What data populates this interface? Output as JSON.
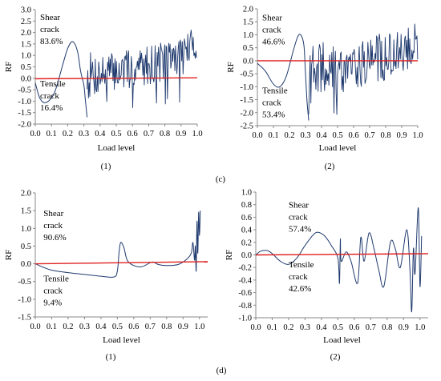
{
  "row_labels": [
    "(c)",
    "(d)"
  ],
  "chart_data": [
    {
      "id": "c1",
      "type": "line",
      "sublabel": "(1)",
      "xlabel": "Load level",
      "ylabel": "RF",
      "xlim": [
        0,
        1.0
      ],
      "ylim": [
        -2.0,
        3.0
      ],
      "xticks": [
        "0.0",
        "0.1",
        "0.2",
        "0.3",
        "0.4",
        "0.5",
        "0.6",
        "0.7",
        "0.8",
        "0.9",
        "1.0"
      ],
      "yticks": [
        "3.0",
        "2.5",
        "2.0",
        "1.5",
        "1.0",
        "0.5",
        "0.0",
        "-0.5",
        "-1.0",
        "-1.5",
        "-2.0"
      ],
      "annotations": [
        {
          "lines": [
            "Shear",
            "crack",
            "83.6%"
          ],
          "x": 0.03,
          "y": 2.55
        },
        {
          "lines": [
            "Tensile",
            "crack",
            "16.4%"
          ],
          "x": 0.03,
          "y": -0.35
        }
      ],
      "ref_line": [
        [
          0.0,
          -0.02
        ],
        [
          1.0,
          0.02
        ]
      ],
      "smooth": [
        [
          0.0,
          -0.2
        ],
        [
          0.03,
          -0.9
        ],
        [
          0.07,
          -1.05
        ],
        [
          0.12,
          -0.6
        ],
        [
          0.17,
          0.6
        ],
        [
          0.2,
          1.3
        ],
        [
          0.23,
          1.6
        ],
        [
          0.26,
          1.2
        ],
        [
          0.28,
          0.3
        ],
        [
          0.3,
          -0.3
        ],
        [
          0.31,
          -1.0
        ],
        [
          0.32,
          -1.7
        ]
      ],
      "noisy": {
        "x0": 0.32,
        "x1": 1.0,
        "step": 0.0042,
        "seed": 7,
        "profile": [
          [
            0.32,
            0.1,
            1.1
          ],
          [
            0.45,
            0.25,
            0.9
          ],
          [
            0.6,
            0.4,
            0.85
          ],
          [
            0.75,
            0.7,
            0.9
          ],
          [
            0.9,
            1.0,
            0.95
          ],
          [
            1.0,
            1.6,
            0.7
          ]
        ],
        "spike_lo": -1.3
      }
    },
    {
      "id": "c2",
      "type": "line",
      "sublabel": "(2)",
      "xlabel": "Load level",
      "ylabel": "RF",
      "xlim": [
        0,
        1.0
      ],
      "ylim": [
        -2.5,
        2.0
      ],
      "xticks": [
        "0.0",
        "0.1",
        "0.2",
        "0.3",
        "0.4",
        "0.5",
        "0.6",
        "0.7",
        "0.8",
        "0.9",
        "1.0"
      ],
      "yticks": [
        "2.0",
        "1.5",
        "1.0",
        "0.5",
        "0.0",
        "-0.5",
        "-1.0",
        "-1.5",
        "-2.0",
        "-2.5"
      ],
      "annotations": [
        {
          "lines": [
            "Shear",
            "crack",
            "46.6%"
          ],
          "x": 0.03,
          "y": 1.55
        },
        {
          "lines": [
            "Tensile",
            "crack",
            "53.4%"
          ],
          "x": 0.03,
          "y": -1.25
        }
      ],
      "ref_line": [
        [
          0.0,
          0.0
        ],
        [
          1.0,
          0.0
        ]
      ],
      "smooth": [
        [
          0.0,
          -0.1
        ],
        [
          0.05,
          -0.4
        ],
        [
          0.1,
          -0.9
        ],
        [
          0.14,
          -1.0
        ],
        [
          0.18,
          -0.6
        ],
        [
          0.22,
          0.3
        ],
        [
          0.25,
          0.9
        ],
        [
          0.27,
          1.0
        ],
        [
          0.29,
          0.6
        ],
        [
          0.3,
          -0.5
        ],
        [
          0.31,
          -1.6
        ],
        [
          0.32,
          -2.3
        ]
      ],
      "noisy": {
        "x0": 0.32,
        "x1": 1.0,
        "step": 0.0045,
        "seed": 19,
        "profile": [
          [
            0.32,
            -0.6,
            1.2
          ],
          [
            0.45,
            -0.3,
            1.1
          ],
          [
            0.6,
            -0.1,
            1.0
          ],
          [
            0.75,
            0.1,
            0.95
          ],
          [
            0.9,
            0.3,
            0.85
          ],
          [
            1.0,
            0.8,
            0.8
          ]
        ],
        "spike_lo": -2.4
      }
    },
    {
      "id": "d1",
      "type": "line",
      "sublabel": "(1)",
      "xlabel": "Load level",
      "ylabel": "RF",
      "xlim": [
        0,
        1.05
      ],
      "ylim": [
        -1.5,
        2.0
      ],
      "xticks": [
        "0.0",
        "0.1",
        "0.2",
        "0.3",
        "0.4",
        "0.5",
        "0.6",
        "0.7",
        "0.8",
        "0.9",
        "1.0"
      ],
      "yticks": [
        "2.0",
        "1.5",
        "1.0",
        "0.5",
        "0.0",
        "-0.5",
        "-1.0",
        "-1.5"
      ],
      "annotations": [
        {
          "lines": [
            "Shear",
            "crack",
            "90.6%"
          ],
          "x": 0.05,
          "y": 1.35
        },
        {
          "lines": [
            "Tensile",
            "crack",
            "9.4%"
          ],
          "x": 0.05,
          "y": -0.5
        }
      ],
      "ref_line": [
        [
          0.0,
          0.0
        ],
        [
          1.05,
          0.06
        ]
      ],
      "smooth": [
        [
          0.0,
          0.0
        ],
        [
          0.05,
          -0.1
        ],
        [
          0.1,
          -0.18
        ],
        [
          0.2,
          -0.25
        ],
        [
          0.3,
          -0.3
        ],
        [
          0.4,
          -0.35
        ],
        [
          0.48,
          -0.37
        ],
        [
          0.5,
          -0.2
        ],
        [
          0.51,
          0.3
        ],
        [
          0.52,
          0.6
        ],
        [
          0.54,
          0.45
        ],
        [
          0.56,
          0.1
        ],
        [
          0.6,
          -0.05
        ],
        [
          0.65,
          -0.08
        ],
        [
          0.7,
          0.03
        ],
        [
          0.72,
          0.05
        ],
        [
          0.75,
          -0.02
        ],
        [
          0.8,
          -0.05
        ],
        [
          0.87,
          -0.02
        ],
        [
          0.92,
          0.12
        ],
        [
          0.95,
          0.3
        ],
        [
          0.96,
          0.6
        ],
        [
          0.97,
          0.1
        ],
        [
          0.975,
          0.5
        ],
        [
          0.98,
          -0.2
        ],
        [
          0.985,
          1.2
        ],
        [
          0.99,
          0.3
        ],
        [
          0.995,
          1.45
        ],
        [
          1.0,
          0.8
        ],
        [
          1.005,
          1.5
        ]
      ],
      "noisy": null
    },
    {
      "id": "d2",
      "type": "line",
      "sublabel": "(2)",
      "xlabel": "Load level",
      "ylabel": "RF",
      "xlim": [
        0,
        1.05
      ],
      "ylim": [
        -1.0,
        1.0
      ],
      "xticks": [
        "0.0",
        "0.1",
        "0.2",
        "0.3",
        "0.4",
        "0.5",
        "0.6",
        "0.7",
        "0.8",
        "0.9",
        "1.0"
      ],
      "yticks": [
        "1.0",
        "0.8",
        "0.6",
        "0.4",
        "0.2",
        "0.0",
        "-0.2",
        "-0.4",
        "-0.6",
        "-0.8",
        "-1.0"
      ],
      "annotations": [
        {
          "lines": [
            "Shear",
            "crack",
            "57.4%"
          ],
          "x": 0.2,
          "y": 0.75
        },
        {
          "lines": [
            "Tensile",
            "crack",
            "42.6%"
          ],
          "x": 0.2,
          "y": -0.2
        }
      ],
      "ref_line": [
        [
          0.0,
          0.0
        ],
        [
          1.05,
          0.02
        ]
      ],
      "smooth": [
        [
          0.0,
          0.0
        ],
        [
          0.03,
          0.06
        ],
        [
          0.07,
          0.07
        ],
        [
          0.1,
          0.02
        ],
        [
          0.15,
          -0.1
        ],
        [
          0.2,
          -0.15
        ],
        [
          0.25,
          -0.05
        ],
        [
          0.3,
          0.15
        ],
        [
          0.35,
          0.32
        ],
        [
          0.38,
          0.36
        ],
        [
          0.42,
          0.3
        ],
        [
          0.46,
          0.15
        ],
        [
          0.5,
          -0.05
        ],
        [
          0.51,
          -0.45
        ],
        [
          0.515,
          0.25
        ],
        [
          0.52,
          -0.1
        ],
        [
          0.55,
          0.05
        ],
        [
          0.58,
          -0.1
        ],
        [
          0.62,
          -0.45
        ],
        [
          0.64,
          0.28
        ],
        [
          0.66,
          -0.1
        ],
        [
          0.69,
          0.35
        ],
        [
          0.72,
          0.1
        ],
        [
          0.75,
          -0.25
        ],
        [
          0.78,
          -0.5
        ],
        [
          0.82,
          0.2
        ],
        [
          0.85,
          0.1
        ],
        [
          0.88,
          -0.2
        ],
        [
          0.92,
          0.4
        ],
        [
          0.94,
          -0.3
        ],
        [
          0.95,
          -0.9
        ],
        [
          0.96,
          0.1
        ],
        [
          0.97,
          -0.3
        ],
        [
          0.99,
          0.75
        ],
        [
          1.0,
          -0.5
        ],
        [
          1.01,
          0.3
        ]
      ],
      "noisy": null
    }
  ],
  "colors": {
    "series": "#1f3a6e",
    "ref": "#e02020",
    "axis": "#888888"
  }
}
